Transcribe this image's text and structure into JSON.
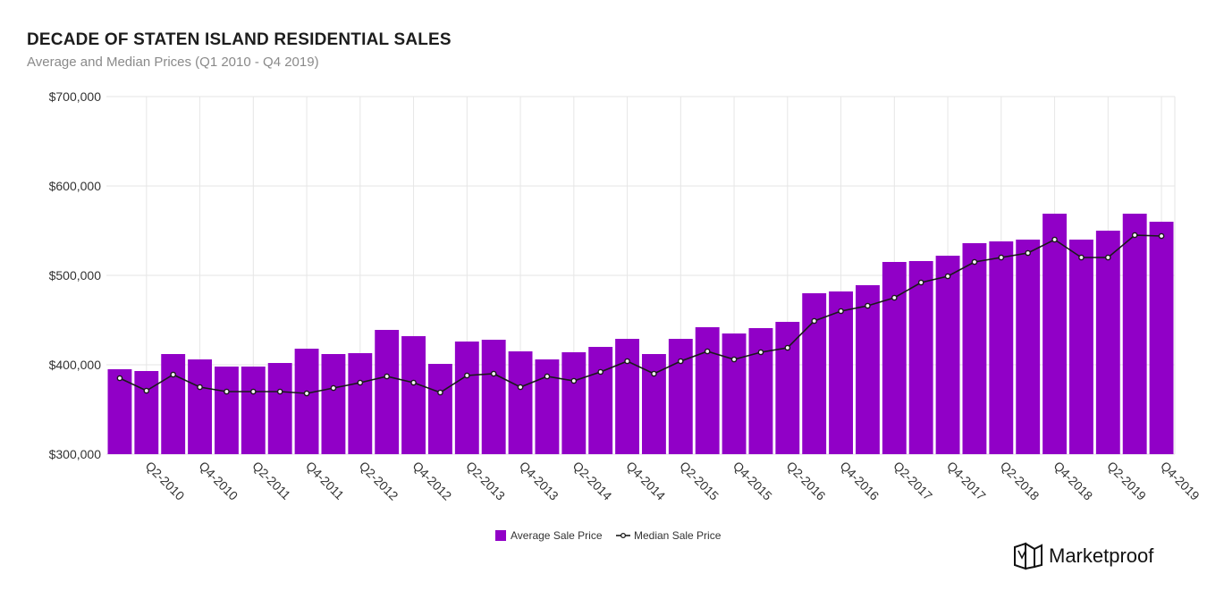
{
  "title": "DECADE OF STATEN ISLAND RESIDENTIAL SALES",
  "subtitle": "Average and Median Prices (Q1 2010 - Q4 2019)",
  "brand": "Marketproof",
  "colors": {
    "bar": "#9100c7",
    "line": "#1a1a1a",
    "marker_fill": "#ffffff",
    "grid": "#e6e6e6",
    "text": "#333333"
  },
  "chart_data": {
    "type": "bar",
    "title": "DECADE OF STATEN ISLAND RESIDENTIAL SALES",
    "subtitle": "Average and Median Prices (Q1 2010 - Q4 2019)",
    "xlabel": "",
    "ylabel": "",
    "ylim": [
      300000,
      700000
    ],
    "yticks": [
      300000,
      400000,
      500000,
      600000,
      700000
    ],
    "ytick_labels": [
      "$300,000",
      "$400,000",
      "$500,000",
      "$600,000",
      "$700,000"
    ],
    "categories": [
      "Q1-2010",
      "Q2-2010",
      "Q3-2010",
      "Q4-2010",
      "Q1-2011",
      "Q2-2011",
      "Q3-2011",
      "Q4-2011",
      "Q1-2012",
      "Q2-2012",
      "Q3-2012",
      "Q4-2012",
      "Q1-2013",
      "Q2-2013",
      "Q3-2013",
      "Q4-2013",
      "Q1-2014",
      "Q2-2014",
      "Q3-2014",
      "Q4-2014",
      "Q1-2015",
      "Q2-2015",
      "Q3-2015",
      "Q4-2015",
      "Q1-2016",
      "Q2-2016",
      "Q3-2016",
      "Q4-2016",
      "Q1-2017",
      "Q2-2017",
      "Q3-2017",
      "Q4-2017",
      "Q1-2018",
      "Q2-2018",
      "Q3-2018",
      "Q4-2018",
      "Q1-2019",
      "Q2-2019",
      "Q3-2019",
      "Q4-2019"
    ],
    "series": [
      {
        "name": "Average Sale Price",
        "type": "bar",
        "values": [
          395000,
          393000,
          412000,
          406000,
          398000,
          398000,
          402000,
          418000,
          412000,
          413000,
          439000,
          432000,
          401000,
          426000,
          428000,
          415000,
          406000,
          414000,
          420000,
          429000,
          412000,
          429000,
          442000,
          435000,
          441000,
          448000,
          480000,
          482000,
          489000,
          515000,
          516000,
          522000,
          536000,
          538000,
          540000,
          569000,
          540000,
          550000,
          569000,
          560000
        ]
      },
      {
        "name": "Median Sale Price",
        "type": "line",
        "values": [
          385000,
          371000,
          389000,
          375000,
          370000,
          370000,
          370000,
          368000,
          374000,
          380000,
          387000,
          380000,
          369000,
          388000,
          390000,
          375000,
          387000,
          382000,
          392000,
          404000,
          390000,
          404000,
          415000,
          406000,
          414000,
          419000,
          449000,
          460000,
          466000,
          475000,
          492000,
          499000,
          515000,
          520000,
          525000,
          540000,
          520000,
          520000,
          545000,
          544000
        ]
      }
    ],
    "grid": true,
    "legend_position": "bottom-center"
  }
}
